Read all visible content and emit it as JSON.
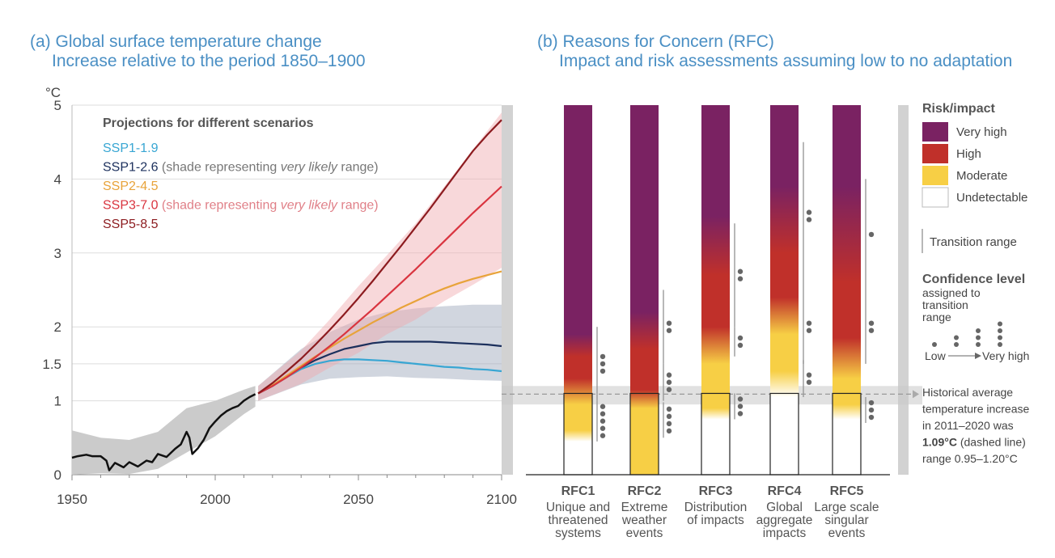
{
  "panel_a": {
    "title": "(a) Global surface temperature change",
    "subtitle": "Increase relative to the period 1850–1900",
    "y_unit": "°C",
    "legend_title": "Projections for different scenarios",
    "legend": [
      {
        "name": "SSP1-1.9",
        "color": "#38a6d3",
        "note": "",
        "note_italic": "",
        "note_end": ""
      },
      {
        "name": "SSP1-2.6",
        "color": "#1b2f5c",
        "note": " (shade representing ",
        "note_italic": "very likely",
        "note_end": " range)"
      },
      {
        "name": "SSP2-4.5",
        "color": "#e8a33a",
        "note": "",
        "note_italic": "",
        "note_end": ""
      },
      {
        "name": "SSP3-7.0",
        "color": "#d9343f",
        "note": " (shade representing ",
        "note_italic": "very likely",
        "note_end": " range)"
      },
      {
        "name": "SSP5-8.5",
        "color": "#8c1b1f",
        "note": "",
        "note_italic": "",
        "note_end": ""
      }
    ]
  },
  "panel_b": {
    "title": "(b) Reasons for Concern (RFC)",
    "subtitle": "Impact and risk assessments assuming low to no adaptation",
    "columns": [
      {
        "id": "RFC1",
        "label": [
          "Unique and",
          "threatened",
          "systems"
        ]
      },
      {
        "id": "RFC2",
        "label": [
          "Extreme",
          "weather",
          "events"
        ]
      },
      {
        "id": "RFC3",
        "label": [
          "Distribution",
          "of impacts"
        ]
      },
      {
        "id": "RFC4",
        "label": [
          "Global",
          "aggregate",
          "impacts"
        ]
      },
      {
        "id": "RFC5",
        "label": [
          "Large scale",
          "singular",
          "events"
        ]
      }
    ],
    "legend": {
      "title": "Risk/impact",
      "levels": [
        {
          "label": "Very high",
          "color": "#7a2262"
        },
        {
          "label": "High",
          "color": "#c0302a"
        },
        {
          "label": "Moderate",
          "color": "#f7cf45"
        },
        {
          "label": "Undetectable",
          "color": "#ffffff"
        }
      ],
      "transition_label": "Transition range",
      "confidence_title": "Confidence level",
      "confidence_sub": [
        "assigned to",
        "transition",
        "range"
      ],
      "confidence_low": "Low",
      "confidence_high": "Very high"
    },
    "historical_note": {
      "lines": [
        "Historical average",
        "temperature increase",
        "in 2011–2020 was"
      ],
      "bold_value": "1.09°C",
      "after_bold": " (dashed line)",
      "range_line": "range 0.95–1.20°C"
    }
  },
  "chart_data": [
    {
      "type": "line",
      "title": "(a) Global surface temperature change",
      "subtitle": "Increase relative to the period 1850–1900",
      "ylabel": "°C",
      "xlim": [
        1950,
        2100
      ],
      "ylim": [
        0,
        5
      ],
      "x_ticks": [
        1950,
        2000,
        2050,
        2100
      ],
      "y_ticks": [
        0,
        1,
        1.5,
        2,
        3,
        4,
        5
      ],
      "grid": "horizontal",
      "series": [
        {
          "name": "Historical",
          "color": "#111111",
          "x": [
            1950,
            1952,
            1955,
            1957,
            1960,
            1962,
            1963,
            1965,
            1968,
            1970,
            1973,
            1976,
            1978,
            1980,
            1983,
            1986,
            1988,
            1990,
            1991,
            1992,
            1994,
            1996,
            1998,
            2000,
            2002,
            2004,
            2006,
            2008,
            2010,
            2012,
            2014
          ],
          "y": [
            0.23,
            0.25,
            0.27,
            0.25,
            0.25,
            0.19,
            0.06,
            0.16,
            0.1,
            0.17,
            0.11,
            0.19,
            0.17,
            0.28,
            0.24,
            0.35,
            0.41,
            0.58,
            0.5,
            0.28,
            0.36,
            0.47,
            0.63,
            0.72,
            0.8,
            0.86,
            0.9,
            0.93,
            1.0,
            1.05,
            1.09
          ]
        },
        {
          "name": "SSP1-1.9",
          "color": "#38a6d3",
          "x": [
            2015,
            2020,
            2025,
            2030,
            2035,
            2040,
            2045,
            2050,
            2055,
            2060,
            2065,
            2070,
            2075,
            2080,
            2085,
            2090,
            2095,
            2100
          ],
          "y": [
            1.1,
            1.2,
            1.32,
            1.43,
            1.5,
            1.54,
            1.56,
            1.56,
            1.55,
            1.54,
            1.52,
            1.5,
            1.48,
            1.46,
            1.45,
            1.43,
            1.42,
            1.4
          ]
        },
        {
          "name": "SSP1-2.6",
          "color": "#1b2f5c",
          "x": [
            2015,
            2020,
            2025,
            2030,
            2035,
            2040,
            2045,
            2050,
            2055,
            2060,
            2065,
            2070,
            2075,
            2080,
            2085,
            2090,
            2095,
            2100
          ],
          "y": [
            1.1,
            1.2,
            1.33,
            1.45,
            1.55,
            1.63,
            1.7,
            1.74,
            1.78,
            1.8,
            1.8,
            1.8,
            1.8,
            1.79,
            1.78,
            1.77,
            1.76,
            1.74
          ]
        },
        {
          "name": "SSP2-4.5",
          "color": "#e8a33a",
          "x": [
            2015,
            2020,
            2025,
            2030,
            2035,
            2040,
            2045,
            2050,
            2055,
            2060,
            2065,
            2070,
            2075,
            2080,
            2085,
            2090,
            2095,
            2100
          ],
          "y": [
            1.1,
            1.21,
            1.34,
            1.47,
            1.6,
            1.72,
            1.84,
            1.95,
            2.06,
            2.16,
            2.26,
            2.35,
            2.44,
            2.52,
            2.59,
            2.65,
            2.7,
            2.75
          ]
        },
        {
          "name": "SSP3-7.0",
          "color": "#d9343f",
          "x": [
            2015,
            2020,
            2025,
            2030,
            2035,
            2040,
            2045,
            2050,
            2055,
            2060,
            2065,
            2070,
            2075,
            2080,
            2085,
            2090,
            2095,
            2100
          ],
          "y": [
            1.1,
            1.2,
            1.32,
            1.45,
            1.59,
            1.74,
            1.9,
            2.07,
            2.24,
            2.42,
            2.6,
            2.78,
            2.97,
            3.16,
            3.35,
            3.54,
            3.72,
            3.9
          ]
        },
        {
          "name": "SSP5-8.5",
          "color": "#8c1b1f",
          "x": [
            2015,
            2020,
            2025,
            2030,
            2035,
            2040,
            2045,
            2050,
            2055,
            2060,
            2065,
            2070,
            2075,
            2080,
            2085,
            2090,
            2095,
            2100
          ],
          "y": [
            1.1,
            1.24,
            1.4,
            1.57,
            1.76,
            1.96,
            2.17,
            2.39,
            2.62,
            2.86,
            3.1,
            3.35,
            3.6,
            3.86,
            4.12,
            4.38,
            4.6,
            4.8
          ]
        }
      ],
      "bands": [
        {
          "name": "Historical range",
          "color": "#c8c8c8",
          "x": [
            1950,
            1960,
            1970,
            1980,
            1990,
            2000,
            2010,
            2014
          ],
          "lower": [
            0.0,
            0.02,
            0.01,
            0.08,
            0.3,
            0.52,
            0.82,
            0.92
          ],
          "upper": [
            0.6,
            0.5,
            0.47,
            0.58,
            0.9,
            1.0,
            1.15,
            1.2
          ]
        },
        {
          "name": "SSP1-2.6 very likely range",
          "color": "#9aa5b8",
          "x": [
            2015,
            2030,
            2040,
            2050,
            2060,
            2070,
            2080,
            2090,
            2100
          ],
          "lower": [
            1.0,
            1.22,
            1.3,
            1.32,
            1.33,
            1.31,
            1.3,
            1.28,
            1.27
          ],
          "upper": [
            1.2,
            1.7,
            1.93,
            2.1,
            2.2,
            2.25,
            2.28,
            2.3,
            2.3
          ]
        },
        {
          "name": "SSP3-7.0 very likely range",
          "color": "#f0a8ae",
          "x": [
            2015,
            2030,
            2040,
            2050,
            2060,
            2070,
            2080,
            2090,
            2100
          ],
          "lower": [
            1.0,
            1.23,
            1.45,
            1.65,
            1.9,
            2.1,
            2.35,
            2.57,
            2.8
          ],
          "upper": [
            1.2,
            1.68,
            2.1,
            2.55,
            2.97,
            3.4,
            3.9,
            4.4,
            4.9
          ]
        }
      ]
    },
    {
      "type": "heatmap",
      "title": "(b) Reasons for Concern (RFC)",
      "subtitle": "Impact and risk assessments assuming low to no adaptation",
      "ylim": [
        0,
        5
      ],
      "reference_line": {
        "value": 1.09,
        "range": [
          0.95,
          1.2
        ]
      },
      "columns": [
        {
          "id": "RFC1",
          "stops": [
            {
              "t": 0.45,
              "level": "Undetectable"
            },
            {
              "t": 0.6,
              "level": "Moderate"
            },
            {
              "t": 0.95,
              "level": "Moderate"
            },
            {
              "t": 1.3,
              "level": "High"
            },
            {
              "t": 1.6,
              "level": "High"
            },
            {
              "t": 1.9,
              "level": "Very high"
            },
            {
              "t": 5.0,
              "level": "Very high"
            }
          ],
          "transitions": [
            {
              "low": 0.45,
              "high": 1.0,
              "confidence": 5
            },
            {
              "low": 1.0,
              "high": 2.0,
              "confidence": 3
            }
          ]
        },
        {
          "id": "RFC2",
          "stops": [
            {
              "t": 0.5,
              "level": "Moderate"
            },
            {
              "t": 0.9,
              "level": "Moderate"
            },
            {
              "t": 1.15,
              "level": "High"
            },
            {
              "t": 1.7,
              "level": "High"
            },
            {
              "t": 2.2,
              "level": "Very high"
            },
            {
              "t": 5.0,
              "level": "Very high"
            }
          ],
          "transitions": [
            {
              "low": 0.5,
              "high": 0.98,
              "confidence": 4
            },
            {
              "low": 1.0,
              "high": 1.5,
              "confidence": 3
            },
            {
              "low": 1.5,
              "high": 2.5,
              "confidence": 2
            }
          ]
        },
        {
          "id": "RFC3",
          "stops": [
            {
              "t": 0.75,
              "level": "Undetectable"
            },
            {
              "t": 0.9,
              "level": "Moderate"
            },
            {
              "t": 1.5,
              "level": "Moderate"
            },
            {
              "t": 2.0,
              "level": "High"
            },
            {
              "t": 2.7,
              "level": "High"
            },
            {
              "t": 3.5,
              "level": "Very high"
            },
            {
              "t": 5.0,
              "level": "Very high"
            }
          ],
          "transitions": [
            {
              "low": 0.75,
              "high": 1.1,
              "confidence": 3
            },
            {
              "low": 1.6,
              "high": 2.0,
              "confidence": 2
            },
            {
              "low": 2.0,
              "high": 3.4,
              "confidence": 2
            }
          ]
        },
        {
          "id": "RFC4",
          "stops": [
            {
              "t": 1.05,
              "level": "Undetectable"
            },
            {
              "t": 1.4,
              "level": "Moderate"
            },
            {
              "t": 1.9,
              "level": "Moderate"
            },
            {
              "t": 2.4,
              "level": "High"
            },
            {
              "t": 3.0,
              "level": "High"
            },
            {
              "t": 3.9,
              "level": "Very high"
            },
            {
              "t": 5.0,
              "level": "Very high"
            }
          ],
          "transitions": [
            {
              "low": 1.05,
              "high": 1.55,
              "confidence": 2
            },
            {
              "low": 1.5,
              "high": 2.5,
              "confidence": 2
            },
            {
              "low": 2.5,
              "high": 4.5,
              "confidence": 2
            }
          ]
        },
        {
          "id": "RFC5",
          "stops": [
            {
              "t": 0.75,
              "level": "Undetectable"
            },
            {
              "t": 0.95,
              "level": "Moderate"
            },
            {
              "t": 1.3,
              "level": "Moderate"
            },
            {
              "t": 1.85,
              "level": "High"
            },
            {
              "t": 2.6,
              "level": "High"
            },
            {
              "t": 3.9,
              "level": "Very high"
            },
            {
              "t": 5.0,
              "level": "Very high"
            }
          ],
          "transitions": [
            {
              "low": 0.7,
              "high": 1.05,
              "confidence": 3
            },
            {
              "low": 1.5,
              "high": 2.5,
              "confidence": 2
            },
            {
              "low": 2.5,
              "high": 4.0,
              "confidence": 1
            }
          ]
        }
      ]
    }
  ]
}
